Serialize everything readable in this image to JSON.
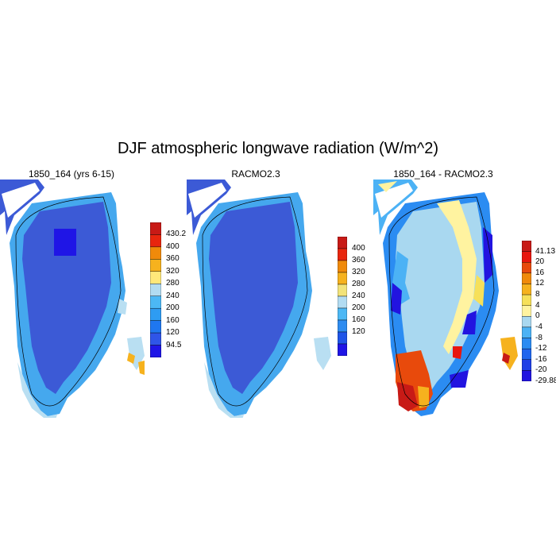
{
  "figure": {
    "title": "DJF atmospheric longwave radiation (W/m^2)"
  },
  "panels": [
    {
      "id": "model",
      "title": "1850_164 (yrs 6-15)",
      "colorbar": {
        "colors": [
          "#1f15e6",
          "#2f55e8",
          "#1f77f0",
          "#2e9cf2",
          "#4cb8f5",
          "#b2dcf2",
          "#ffe87a",
          "#f6b21e",
          "#f08a0a",
          "#e8260e",
          "#c81a16"
        ],
        "labels": [
          "94.5",
          "120",
          "160",
          "200",
          "240",
          "280",
          "320",
          "360",
          "400",
          "430.2"
        ]
      },
      "regions": [
        {
          "label": "high interior",
          "color": "#1f15e6"
        },
        {
          "label": "ice sheet",
          "color": "#3c5ad6"
        },
        {
          "label": "coast",
          "color": "#45a8ee"
        },
        {
          "label": "fringe",
          "color": "#b9dff2"
        },
        {
          "label": "island",
          "color": "#f6b21e"
        }
      ]
    },
    {
      "id": "racmo",
      "title": "RACMO2.3",
      "colorbar": {
        "colors": [
          "#1f15e6",
          "#1f55e8",
          "#2e8cf0",
          "#4cb8f5",
          "#b2dcf2",
          "#f2e37a",
          "#f6b21e",
          "#f08a0a",
          "#e8260e",
          "#c81a16"
        ],
        "labels": [
          "120",
          "160",
          "200",
          "240",
          "280",
          "320",
          "360",
          "400"
        ]
      },
      "regions": [
        {
          "label": "ice sheet",
          "color": "#3c5ad6"
        },
        {
          "label": "coast",
          "color": "#45a8ee"
        },
        {
          "label": "fringe",
          "color": "#b9dff2"
        }
      ]
    },
    {
      "id": "diff",
      "title": "1850_164 - RACMO2.3",
      "colorbar": {
        "colors": [
          "#2214e0",
          "#1f3fe6",
          "#1f66ee",
          "#2b8cf2",
          "#4cb2f5",
          "#a9d8f0",
          "#fff3a0",
          "#f6e05a",
          "#f6b21e",
          "#f08a0a",
          "#e84a0c",
          "#e8160e",
          "#c81a16"
        ],
        "labels": [
          "-29.88",
          "-20",
          "-16",
          "-12",
          "-8",
          "-4",
          "0",
          "4",
          "8",
          "12",
          "16",
          "20",
          "41.13"
        ]
      },
      "regions": [
        {
          "label": "interior",
          "color": "#a9d8f0"
        },
        {
          "label": "positive band",
          "color": "#fff3a0"
        },
        {
          "label": "negative west",
          "color": "#2b8cf2"
        },
        {
          "label": "strong negative",
          "color": "#2214e0"
        },
        {
          "label": "south warm",
          "color": "#e84a0c"
        },
        {
          "label": "south hot",
          "color": "#c81a16"
        }
      ]
    }
  ]
}
